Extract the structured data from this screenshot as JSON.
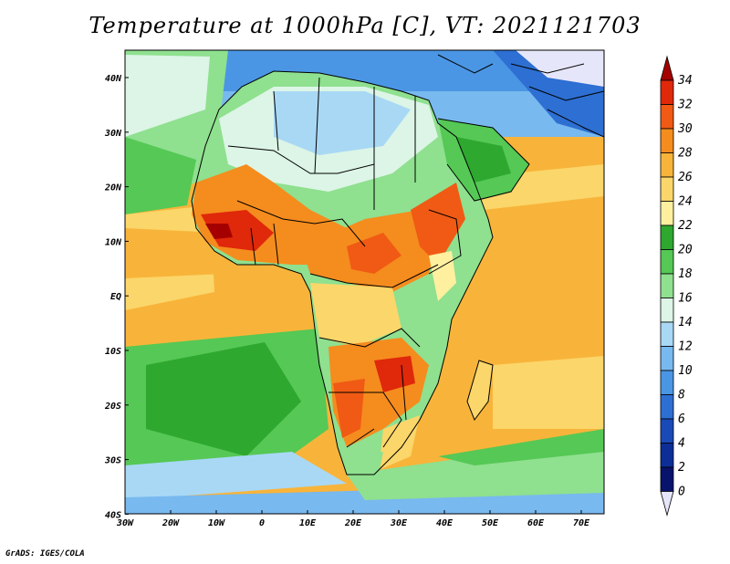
{
  "title": "Temperature at 1000hPa [C], VT: 2021121703",
  "credit": "GrADS: IGES/COLA",
  "map": {
    "lon_range": [
      -30,
      75
    ],
    "lat_range": [
      -40,
      45
    ],
    "x_ticks": [
      "30W",
      "20W",
      "10W",
      "0",
      "10E",
      "20E",
      "30E",
      "40E",
      "50E",
      "60E",
      "70E"
    ],
    "y_ticks": [
      "40N",
      "30N",
      "20N",
      "10N",
      "EQ",
      "10S",
      "20S",
      "30S",
      "40S"
    ],
    "region": "Africa and surrounding oceans"
  },
  "colorbar": {
    "labels": [
      "34",
      "32",
      "30",
      "28",
      "26",
      "24",
      "22",
      "20",
      "18",
      "16",
      "14",
      "12",
      "10",
      "8",
      "6",
      "4",
      "2",
      "0"
    ],
    "colors": [
      "#a50000",
      "#e0280a",
      "#f05a14",
      "#f58c1e",
      "#f8b43a",
      "#fbd66a",
      "#fff0a0",
      "#2ea82e",
      "#55c855",
      "#8fe08f",
      "#dcf5e6",
      "#a9d8f5",
      "#78b9ef",
      "#4a96e4",
      "#2d6fd2",
      "#1a4ab8",
      "#0d2e96",
      "#08136b",
      "#e6e6fa"
    ],
    "units": "C"
  }
}
